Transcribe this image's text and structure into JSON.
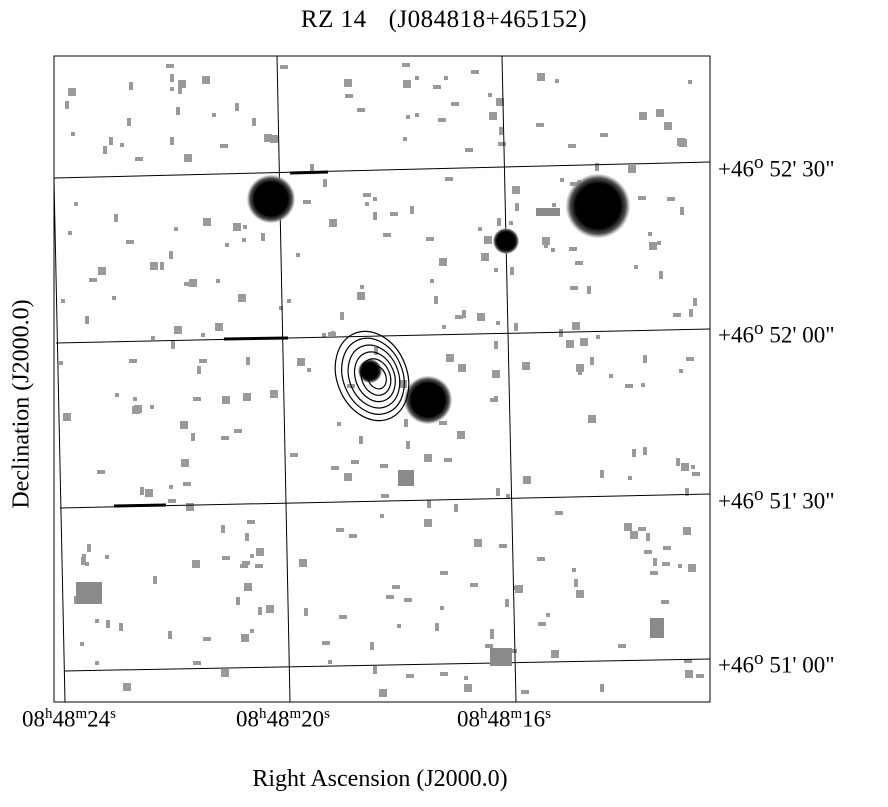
{
  "title": {
    "name": "RZ 14",
    "designation": "(J084818+465152)"
  },
  "axes": {
    "xlabel": "Right  Ascension (J2000.0)",
    "ylabel": "Declination (J2000.0)"
  },
  "ra_ticks": [
    {
      "h": "08",
      "m": "48",
      "s": "24"
    },
    {
      "h": "08",
      "m": "48",
      "s": "20"
    },
    {
      "h": "08",
      "m": "48",
      "s": "16"
    }
  ],
  "dec_ticks": [
    {
      "d": "+46",
      "am": "52",
      "as": "30"
    },
    {
      "d": "+46",
      "am": "52",
      "as": "00"
    },
    {
      "d": "+46",
      "am": "51",
      "as": "30"
    },
    {
      "d": "+46",
      "am": "51",
      "as": "00"
    }
  ],
  "image": {
    "type": "grayscale sky image with radio contour overlay",
    "background": "#ffffff",
    "noise_color": "#9a9a9a",
    "source_color": "#000000",
    "contour_levels": 6
  }
}
